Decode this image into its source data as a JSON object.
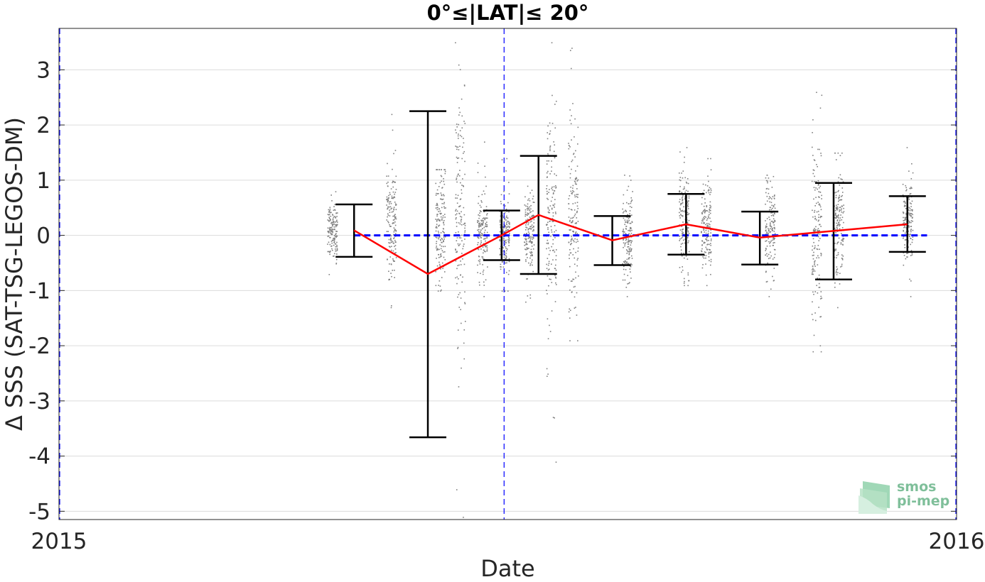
{
  "chart_data": {
    "type": "scatter",
    "title": "0°≤|LAT|≤ 20°",
    "xlabel": "Date",
    "ylabel": "Δ SSS (SAT-TSG-LEGOS-DM)",
    "xlim": [
      "2015-01-01",
      "2016-01-01"
    ],
    "ylim": [
      -5.15,
      3.75
    ],
    "x_ticks": [
      "2015",
      "2016"
    ],
    "y_ticks": [
      3,
      2,
      1,
      0,
      -1,
      -2,
      -3,
      -4,
      -5
    ],
    "grid": "horizontal",
    "reference_lines": {
      "zero_line_x_range": [
        "2015-05-01",
        "2015-12-20"
      ],
      "vertical_dashed_dates": [
        "2015-01-01",
        "2015-07-01",
        "2016-01-01"
      ]
    },
    "series": [
      {
        "kind": "mean_with_error_bars",
        "color": "#ff0000",
        "points": [
          {
            "date": "2015-05-01",
            "mean": 0.09,
            "upper": 0.56,
            "lower": -0.39
          },
          {
            "date": "2015-05-31",
            "mean": -0.7,
            "upper": 2.25,
            "lower": -3.66
          },
          {
            "date": "2015-06-30",
            "mean": 0.0,
            "upper": 0.45,
            "lower": -0.45
          },
          {
            "date": "2015-07-15",
            "mean": 0.37,
            "upper": 1.44,
            "lower": -0.7
          },
          {
            "date": "2015-08-14",
            "mean": -0.09,
            "upper": 0.35,
            "lower": -0.54
          },
          {
            "date": "2015-09-13",
            "mean": 0.2,
            "upper": 0.75,
            "lower": -0.35
          },
          {
            "date": "2015-10-13",
            "mean": -0.04,
            "upper": 0.43,
            "lower": -0.53
          },
          {
            "date": "2015-11-12",
            "mean": 0.08,
            "upper": 0.95,
            "lower": -0.8
          },
          {
            "date": "2015-12-12",
            "mean": 0.2,
            "upper": 0.71,
            "lower": -0.3
          }
        ]
      },
      {
        "kind": "sample_clusters",
        "color": "#808080",
        "clusters": [
          {
            "date": "2015-04-22",
            "center": 0.1,
            "spread": 0.25,
            "min": -0.7,
            "max": 0.8
          },
          {
            "date": "2015-05-16",
            "center": 0.3,
            "spread": 0.45,
            "min": -1.3,
            "max": 2.2
          },
          {
            "date": "2015-06-05",
            "center": 0.2,
            "spread": 0.6,
            "min": -1.0,
            "max": 1.2
          },
          {
            "date": "2015-06-13",
            "center": 0.4,
            "spread": 1.1,
            "min": -5.1,
            "max": 3.5
          },
          {
            "date": "2015-06-22",
            "center": 0.0,
            "spread": 0.4,
            "min": -1.1,
            "max": 1.7
          },
          {
            "date": "2015-07-01",
            "center": 0.0,
            "spread": 0.35,
            "min": -1.0,
            "max": 1.4
          },
          {
            "date": "2015-07-11",
            "center": 0.0,
            "spread": 0.35,
            "min": -1.2,
            "max": 0.9
          },
          {
            "date": "2015-07-20",
            "center": 0.4,
            "spread": 0.9,
            "min": -4.1,
            "max": 3.5
          },
          {
            "date": "2015-07-29",
            "center": 0.3,
            "spread": 0.8,
            "min": -1.9,
            "max": 3.4
          },
          {
            "date": "2015-08-20",
            "center": 0.0,
            "spread": 0.4,
            "min": -1.1,
            "max": 1.1
          },
          {
            "date": "2015-09-12",
            "center": 0.3,
            "spread": 0.45,
            "min": -0.9,
            "max": 1.6
          },
          {
            "date": "2015-09-21",
            "center": 0.2,
            "spread": 0.4,
            "min": -0.9,
            "max": 1.4
          },
          {
            "date": "2015-10-17",
            "center": 0.1,
            "spread": 0.45,
            "min": -1.1,
            "max": 1.1
          },
          {
            "date": "2015-11-05",
            "center": 0.1,
            "spread": 0.8,
            "min": -2.1,
            "max": 2.6
          },
          {
            "date": "2015-11-14",
            "center": 0.2,
            "spread": 0.5,
            "min": -1.3,
            "max": 1.5
          },
          {
            "date": "2015-12-12",
            "center": 0.3,
            "spread": 0.4,
            "min": -1.1,
            "max": 1.6
          }
        ]
      }
    ]
  },
  "watermark": {
    "line1": "smos",
    "line2": "pi-mep",
    "color": "#7fbf9a"
  }
}
